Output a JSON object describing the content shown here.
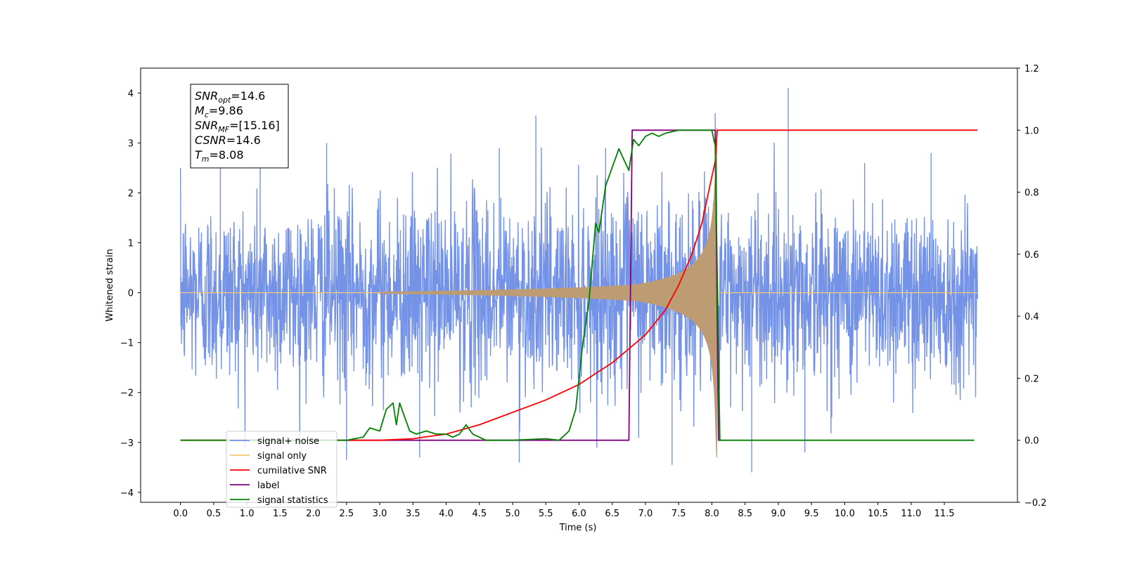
{
  "chart_data": {
    "type": "line",
    "title": "",
    "xlabel": "Time (s)",
    "ylabel": "Whitened strain",
    "xlim": [
      -0.6,
      12.6
    ],
    "ylim": [
      -4.2,
      4.5
    ],
    "y2lim": [
      -0.2,
      1.2
    ],
    "x_ticks": [
      "0.0",
      "0.5",
      "1.0",
      "1.5",
      "2.0",
      "2.5",
      "3.0",
      "3.5",
      "4.0",
      "4.5",
      "5.0",
      "5.5",
      "6.0",
      "6.5",
      "7.0",
      "7.5",
      "8.0",
      "8.5",
      "9.0",
      "9.5",
      "10.0",
      "10.5",
      "11.0",
      "11.5"
    ],
    "y_ticks": [
      "4",
      "3",
      "2",
      "1",
      "0",
      "−1",
      "−2",
      "−3",
      "−4"
    ],
    "y2_ticks": [
      "1.2",
      "1.0",
      "0.8",
      "0.6",
      "0.4",
      "0.2",
      "0.0",
      "−0.2"
    ],
    "grid": false,
    "legend_position": "lower-left",
    "annotation": {
      "lines": [
        {
          "sym": "SNR",
          "sub": "opt",
          "value": "=14.6"
        },
        {
          "sym": "M",
          "sub": "c",
          "value": "=9.86"
        },
        {
          "sym": "SNR",
          "sub": "MF",
          "value": "=[15.16]"
        },
        {
          "sym": "CSNR",
          "sub": "",
          "value": "=14.6"
        },
        {
          "sym": "T",
          "sub": "m",
          "value": "=8.08"
        }
      ]
    },
    "series": [
      {
        "name": "signal+ noise",
        "color": "#7593e6",
        "axis": "left",
        "x_range": [
          0.0,
          12.0
        ],
        "noise_std": 0.9,
        "peaks": [
          [
            9.15,
            4.1
          ],
          [
            8.05,
            3.6
          ],
          [
            5.35,
            3.55
          ],
          [
            7.4,
            -3.45
          ],
          [
            8.6,
            -3.6
          ],
          [
            2.5,
            -3.35
          ],
          [
            5.1,
            -3.4
          ],
          [
            3.6,
            -3.3
          ],
          [
            9.4,
            -3.2
          ],
          [
            0.6,
            2.6
          ],
          [
            1.2,
            2.5
          ],
          [
            2.2,
            3.0
          ],
          [
            4.8,
            2.9
          ],
          [
            6.4,
            2.9
          ],
          [
            10.3,
            2.6
          ],
          [
            11.3,
            2.8
          ]
        ]
      },
      {
        "name": "signal only",
        "color": "#f5c57a",
        "axis": "left",
        "chirp": {
          "t_merger": 8.08,
          "t_start": 3.0,
          "max_amp": 3.3
        }
      },
      {
        "name": "cumilative SNR",
        "color": "#ff0000",
        "axis": "right",
        "x": [
          0.0,
          2.0,
          3.0,
          3.5,
          4.0,
          4.5,
          5.0,
          5.5,
          6.0,
          6.5,
          7.0,
          7.3,
          7.5,
          7.7,
          7.85,
          7.95,
          8.0,
          8.05,
          8.08,
          12.0
        ],
        "values": [
          0.0,
          0.0,
          0.0,
          0.005,
          0.02,
          0.05,
          0.09,
          0.13,
          0.18,
          0.25,
          0.34,
          0.42,
          0.5,
          0.6,
          0.7,
          0.8,
          0.85,
          0.9,
          1.0,
          1.0
        ]
      },
      {
        "name": "label",
        "color": "#800080",
        "axis": "right",
        "x": [
          2.5,
          6.75,
          6.8,
          8.05,
          8.1,
          8.15
        ],
        "values": [
          0.0,
          0.0,
          1.0,
          1.0,
          0.0,
          0.0
        ]
      },
      {
        "name": "signal statistics",
        "color": "#008000",
        "axis": "right",
        "x": [
          0.0,
          2.5,
          2.75,
          2.85,
          3.0,
          3.1,
          3.2,
          3.25,
          3.3,
          3.45,
          3.55,
          3.7,
          3.85,
          4.0,
          4.1,
          4.2,
          4.3,
          4.4,
          4.6,
          5.0,
          5.5,
          5.7,
          5.85,
          5.95,
          6.05,
          6.15,
          6.25,
          6.3,
          6.4,
          6.45,
          6.5,
          6.6,
          6.75,
          6.82,
          6.9,
          7.0,
          7.1,
          7.2,
          7.3,
          7.5,
          7.8,
          8.0,
          8.05,
          8.12,
          11.95
        ],
        "values": [
          0.0,
          0.0,
          0.01,
          0.04,
          0.03,
          0.1,
          0.12,
          0.05,
          0.12,
          0.03,
          0.02,
          0.03,
          0.02,
          0.02,
          0.01,
          0.02,
          0.05,
          0.02,
          0.0,
          0.0,
          0.005,
          0.0,
          0.03,
          0.1,
          0.3,
          0.45,
          0.7,
          0.67,
          0.82,
          0.85,
          0.88,
          0.94,
          0.87,
          0.97,
          0.95,
          0.98,
          0.99,
          0.98,
          0.99,
          1.0,
          1.0,
          1.0,
          0.95,
          0.0,
          0.0
        ]
      }
    ]
  }
}
